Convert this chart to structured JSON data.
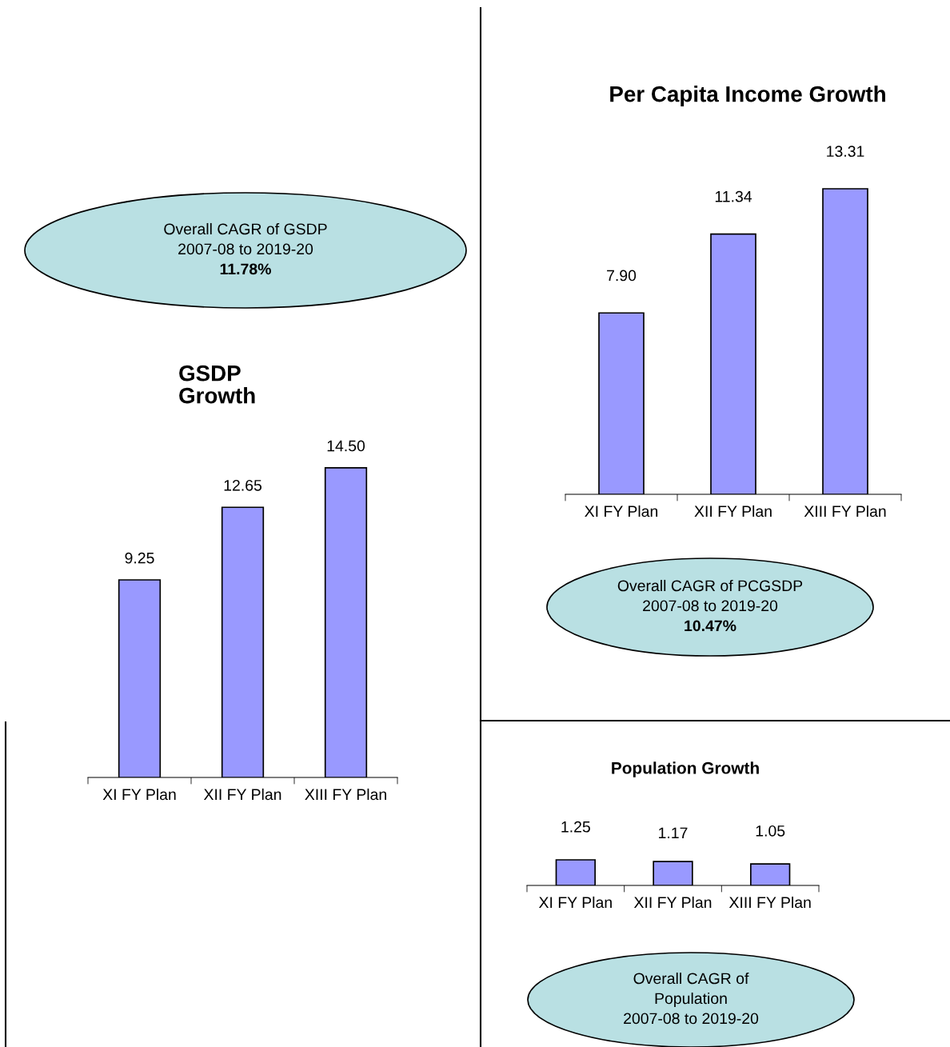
{
  "chart_data": [
    {
      "type": "bar",
      "title": "GSDP\nGrowth",
      "categories": [
        "XI FY Plan",
        "XII FY Plan",
        "XIII FY Plan"
      ],
      "values": [
        9.25,
        12.65,
        14.5
      ],
      "value_labels": [
        "9.25",
        "12.65",
        "14.50"
      ],
      "color": "#9999ff",
      "tick_labels": "x",
      "grid": false,
      "legend": false,
      "annotations": [
        "Overall CAGR of GSDP\n2007-08 to 2019-20\n11.78%"
      ]
    },
    {
      "type": "bar",
      "title": "Per Capita Income Growth",
      "categories": [
        "XI FY Plan",
        "XII FY Plan",
        "XIII FY Plan"
      ],
      "values": [
        7.9,
        11.34,
        13.31
      ],
      "value_labels": [
        "7.90",
        "11.34",
        "13.31"
      ],
      "color": "#9999ff",
      "tick_labels": "x",
      "grid": false,
      "legend": false,
      "annotations": [
        "Overall CAGR of PCGSDP\n2007-08 to 2019-20\n10.47%"
      ]
    },
    {
      "type": "bar",
      "title": "Population Growth",
      "categories": [
        "XI FY Plan",
        "XII FY Plan",
        "XIII FY Plan"
      ],
      "values": [
        1.25,
        1.17,
        1.05
      ],
      "value_labels": [
        "1.25",
        "1.17",
        "1.05"
      ],
      "color": "#9999ff",
      "tick_labels": "x",
      "grid": false,
      "legend": false,
      "annotations": [
        "Overall CAGR of\nPopulation\n2007-08 to 2019-20"
      ]
    }
  ]
}
